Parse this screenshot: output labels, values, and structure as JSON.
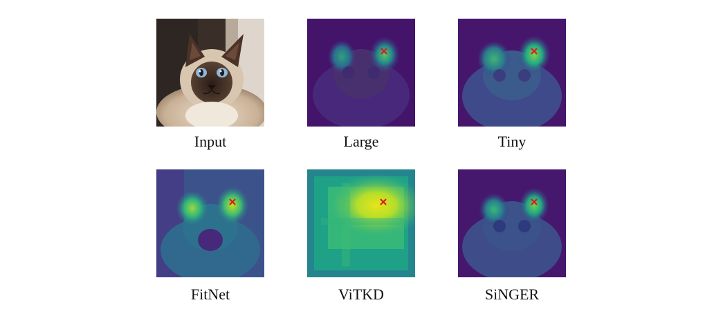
{
  "figure": {
    "panels": [
      {
        "id": "input",
        "caption": "Input",
        "kind": "photo",
        "has_marker": false
      },
      {
        "id": "large",
        "caption": "Large",
        "kind": "attention-map",
        "has_marker": true
      },
      {
        "id": "tiny",
        "caption": "Tiny",
        "kind": "attention-map",
        "has_marker": true
      },
      {
        "id": "fitnet",
        "caption": "FitNet",
        "kind": "attention-map",
        "has_marker": true
      },
      {
        "id": "vitkd",
        "caption": "ViTKD",
        "kind": "attention-map",
        "has_marker": true
      },
      {
        "id": "singer",
        "caption": "SiNGER",
        "kind": "attention-map",
        "has_marker": true
      }
    ],
    "colormap": "viridis",
    "marker_color": "#e0141e"
  }
}
